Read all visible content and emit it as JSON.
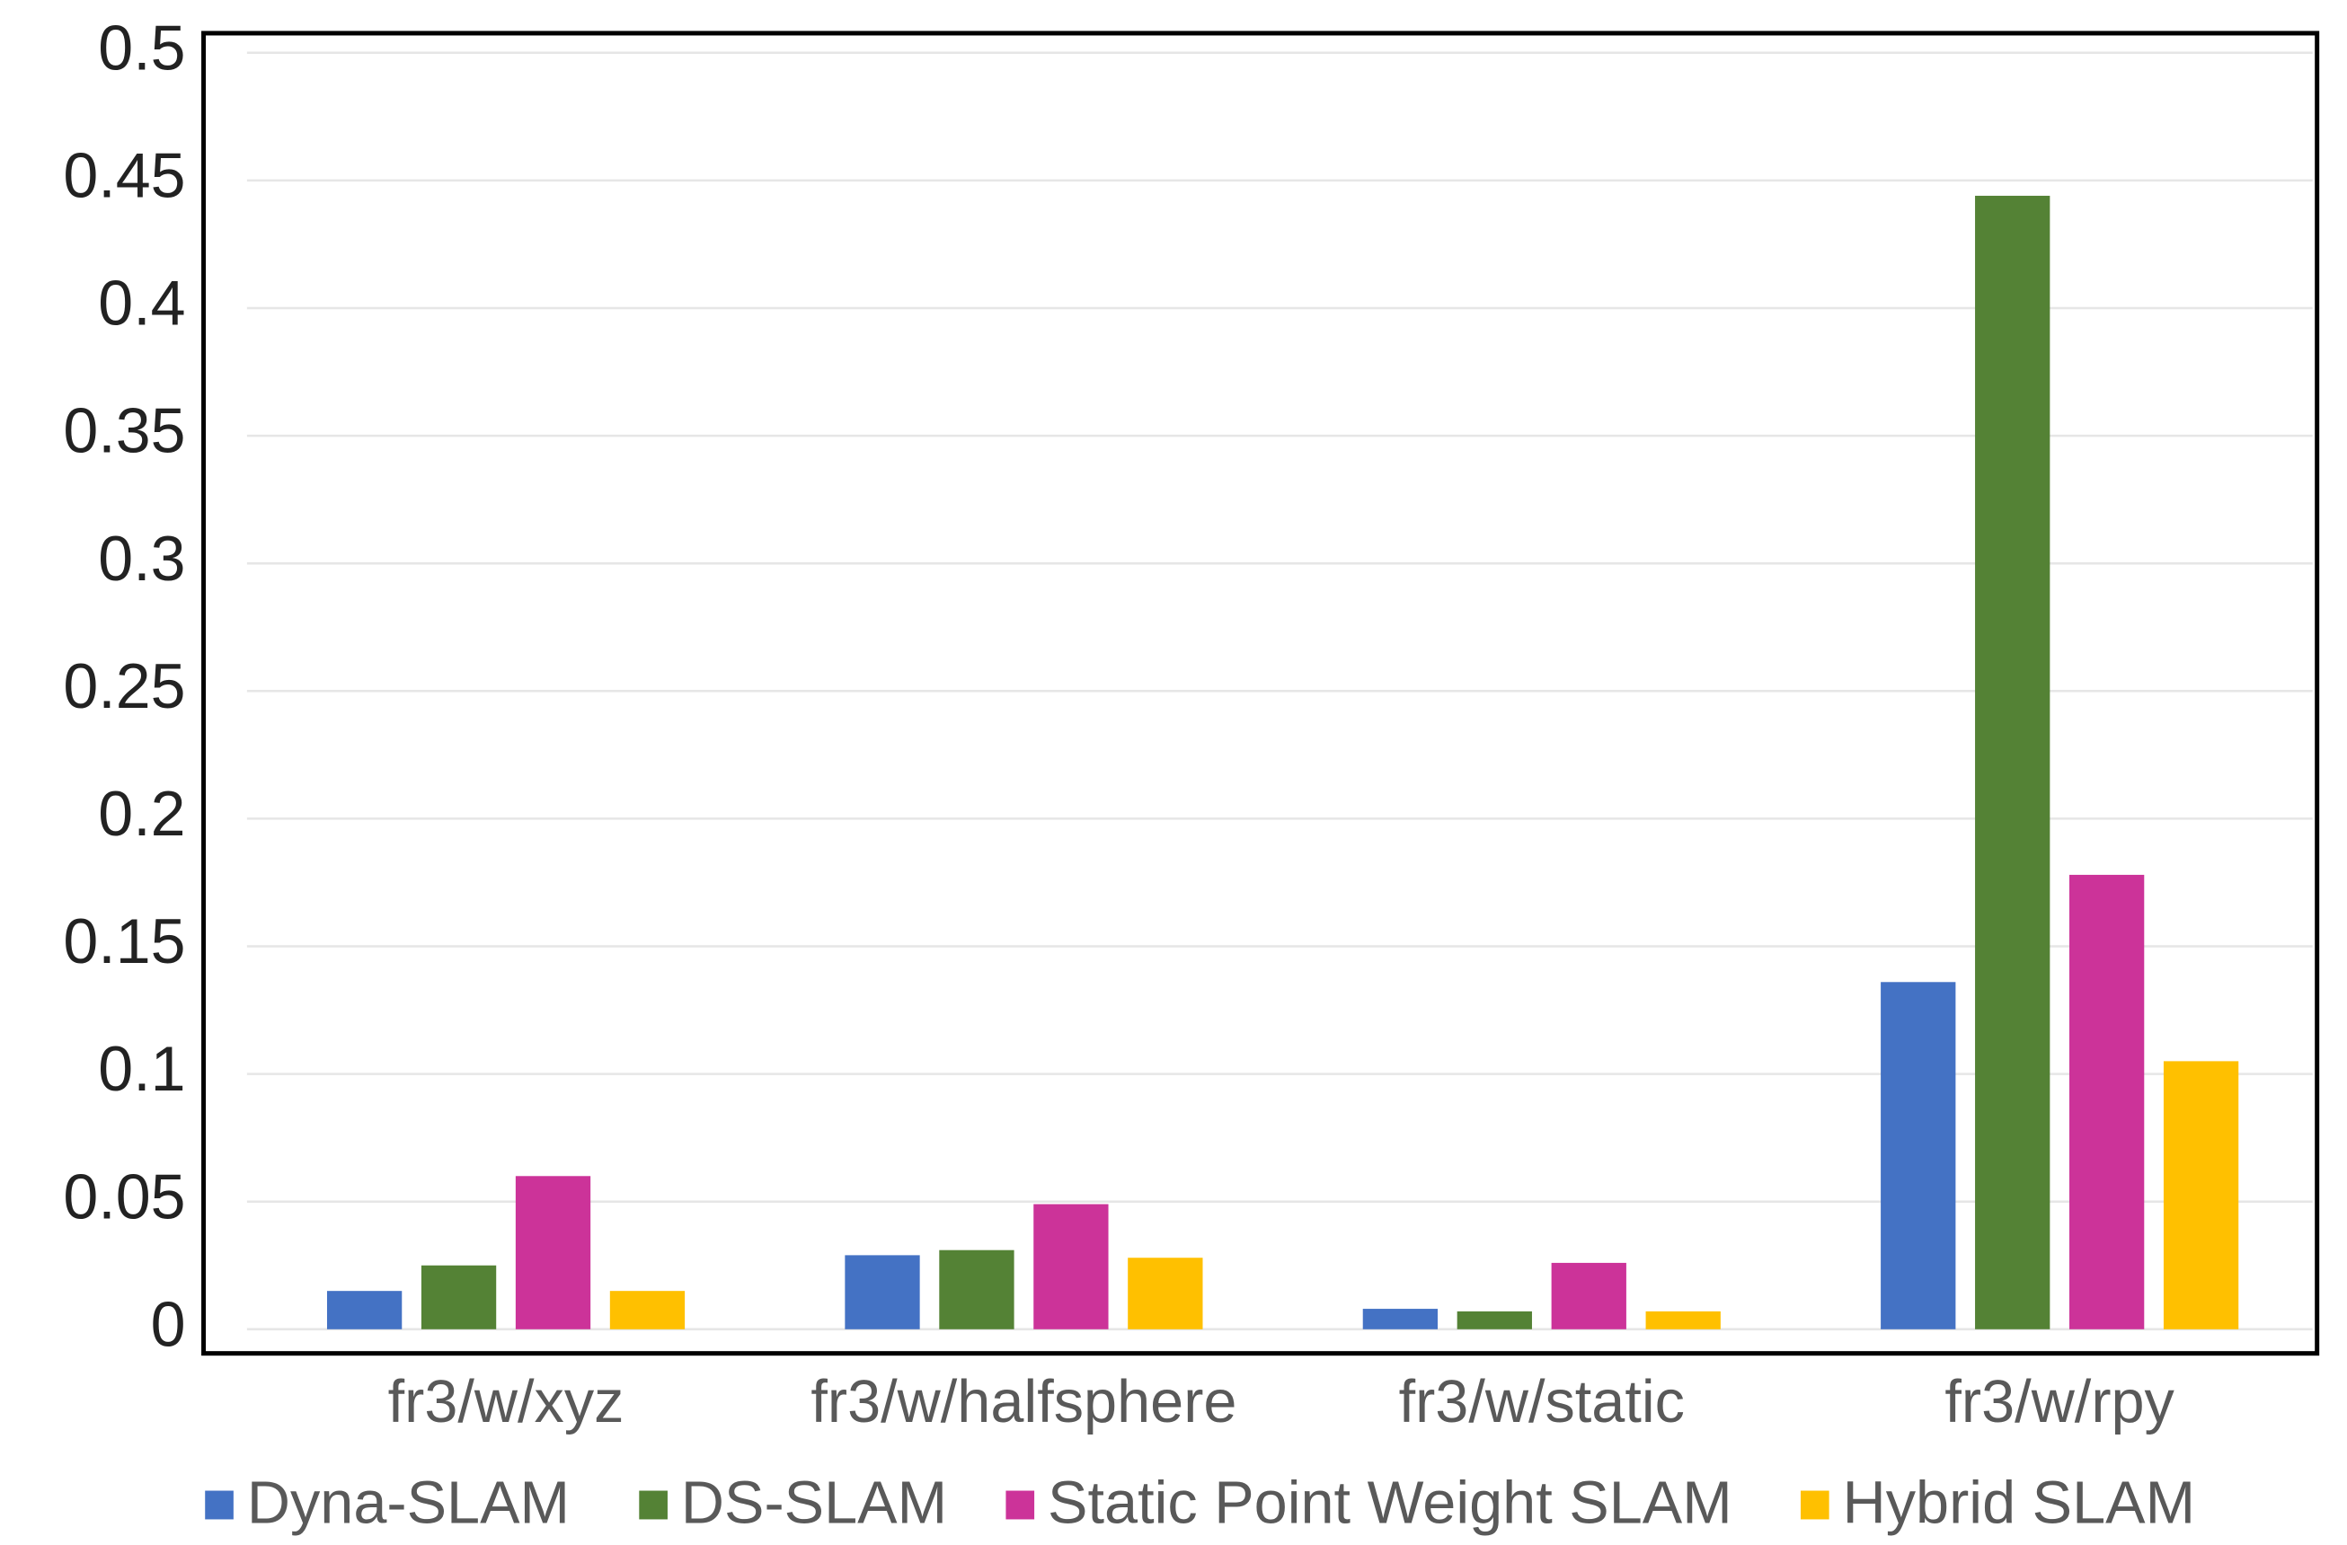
{
  "chart_data": {
    "type": "bar",
    "categories": [
      "fr3/w/xyz",
      "fr3/w/halfsphere",
      "fr3/w/static",
      "fr3/w/rpy"
    ],
    "series": [
      {
        "name": "Dyna-SLAM",
        "color": "#4472c4",
        "values": [
          0.015,
          0.029,
          0.008,
          0.136
        ]
      },
      {
        "name": "DS-SLAM",
        "color": "#548235",
        "values": [
          0.025,
          0.031,
          0.007,
          0.444
        ]
      },
      {
        "name": "Static Point Weight SLAM",
        "color": "#cc3399",
        "values": [
          0.06,
          0.049,
          0.026,
          0.178
        ]
      },
      {
        "name": "Hybrid SLAM",
        "color": "#ffc000",
        "values": [
          0.015,
          0.028,
          0.007,
          0.105
        ]
      }
    ],
    "ylim": [
      0,
      0.5
    ],
    "yticks": [
      0,
      0.05,
      0.1,
      0.15,
      0.2,
      0.25,
      0.3,
      0.35,
      0.4,
      0.45,
      0.5
    ],
    "grid": true
  }
}
